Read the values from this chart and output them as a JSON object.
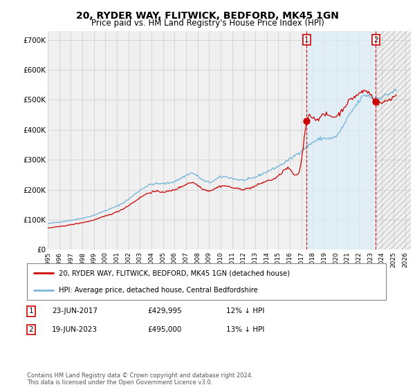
{
  "title": "20, RYDER WAY, FLITWICK, BEDFORD, MK45 1GN",
  "subtitle": "Price paid vs. HM Land Registry's House Price Index (HPI)",
  "title_fontsize": 10,
  "subtitle_fontsize": 8.5,
  "ylabel_ticks": [
    "£0",
    "£100K",
    "£200K",
    "£300K",
    "£400K",
    "£500K",
    "£600K",
    "£700K"
  ],
  "ytick_values": [
    0,
    100000,
    200000,
    300000,
    400000,
    500000,
    600000,
    700000
  ],
  "ylim": [
    0,
    730000
  ],
  "xlim_start": 1995.0,
  "xlim_end": 2026.5,
  "x_ticks": [
    1995,
    1996,
    1997,
    1998,
    1999,
    2000,
    2001,
    2002,
    2003,
    2004,
    2005,
    2006,
    2007,
    2008,
    2009,
    2010,
    2011,
    2012,
    2013,
    2014,
    2015,
    2016,
    2017,
    2018,
    2019,
    2020,
    2021,
    2022,
    2023,
    2024,
    2025,
    2026
  ],
  "hpi_color": "#7ab8d9",
  "price_color": "#cc0000",
  "grid_color": "#cccccc",
  "bg_color": "#ffffff",
  "plot_bg_color": "#f0f0f0",
  "shade_between_color": "#ddeeff",
  "hatch_color": "#cccccc",
  "legend_label_price": "20, RYDER WAY, FLITWICK, BEDFORD, MK45 1GN (detached house)",
  "legend_label_hpi": "HPI: Average price, detached house, Central Bedfordshire",
  "sale1_year": 2017.47,
  "sale1_value": 429995,
  "sale2_year": 2023.47,
  "sale2_value": 495000,
  "annotation1_date": "23-JUN-2017",
  "annotation1_price": "£429,995",
  "annotation1_pct": "12% ↓ HPI",
  "annotation2_date": "19-JUN-2023",
  "annotation2_price": "£495,000",
  "annotation2_pct": "13% ↓ HPI",
  "footer": "Contains HM Land Registry data © Crown copyright and database right 2024.\nThis data is licensed under the Open Government Licence v3.0."
}
